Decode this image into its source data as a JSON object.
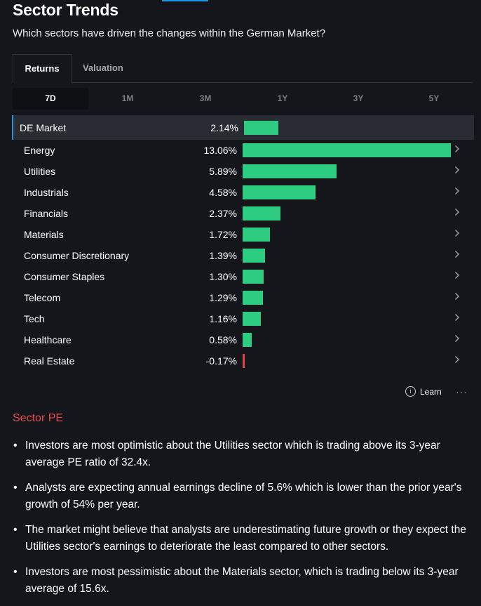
{
  "header": {
    "title": "Sector Trends",
    "subtitle": "Which sectors have driven the changes within the German Market?"
  },
  "tabs": [
    {
      "label": "Returns",
      "active": true
    },
    {
      "label": "Valuation",
      "active": false
    }
  ],
  "periods": [
    {
      "label": "7D",
      "active": true
    },
    {
      "label": "1M",
      "active": false
    },
    {
      "label": "3M",
      "active": false
    },
    {
      "label": "1Y",
      "active": false
    },
    {
      "label": "3Y",
      "active": false
    },
    {
      "label": "5Y",
      "active": false
    }
  ],
  "chart_data": {
    "type": "bar",
    "orientation": "horizontal",
    "categories": [
      "DE Market",
      "Energy",
      "Utilities",
      "Industrials",
      "Financials",
      "Materials",
      "Consumer Discretionary",
      "Consumer Staples",
      "Telecom",
      "Tech",
      "Healthcare",
      "Real Estate"
    ],
    "values": [
      2.14,
      13.06,
      5.89,
      4.58,
      2.37,
      1.72,
      1.39,
      1.3,
      1.29,
      1.16,
      0.58,
      -0.17
    ],
    "value_labels": [
      "2.14%",
      "13.06%",
      "5.89%",
      "4.58%",
      "2.37%",
      "1.72%",
      "1.39%",
      "1.30%",
      "1.29%",
      "1.16%",
      "0.58%",
      "-0.17%"
    ],
    "positive_color": "#2ecc80",
    "negative_color": "#e04646"
  },
  "footer": {
    "learn_label": "Learn",
    "info_icon": "info-icon",
    "more_label": "···"
  },
  "sector_pe": {
    "heading": "Sector PE",
    "bullets": [
      "Investors are most optimistic about the Utilities sector which is trading above its 3-year average PE ratio of 32.4x.",
      "Analysts are expecting annual earnings decline of 5.6% which is lower than the prior year's growth of 54% per year.",
      "The market might believe that analysts are underestimating future growth or they expect the Utilities sector's earnings to deteriorate the least compared to other sectors.",
      "Investors are most pessimistic about the Materials sector, which is trading below its 3-year average of 15.6x."
    ]
  },
  "colors": {
    "background": "#15161b",
    "accent": "#2394df",
    "heading_red": "#e64b4b"
  }
}
